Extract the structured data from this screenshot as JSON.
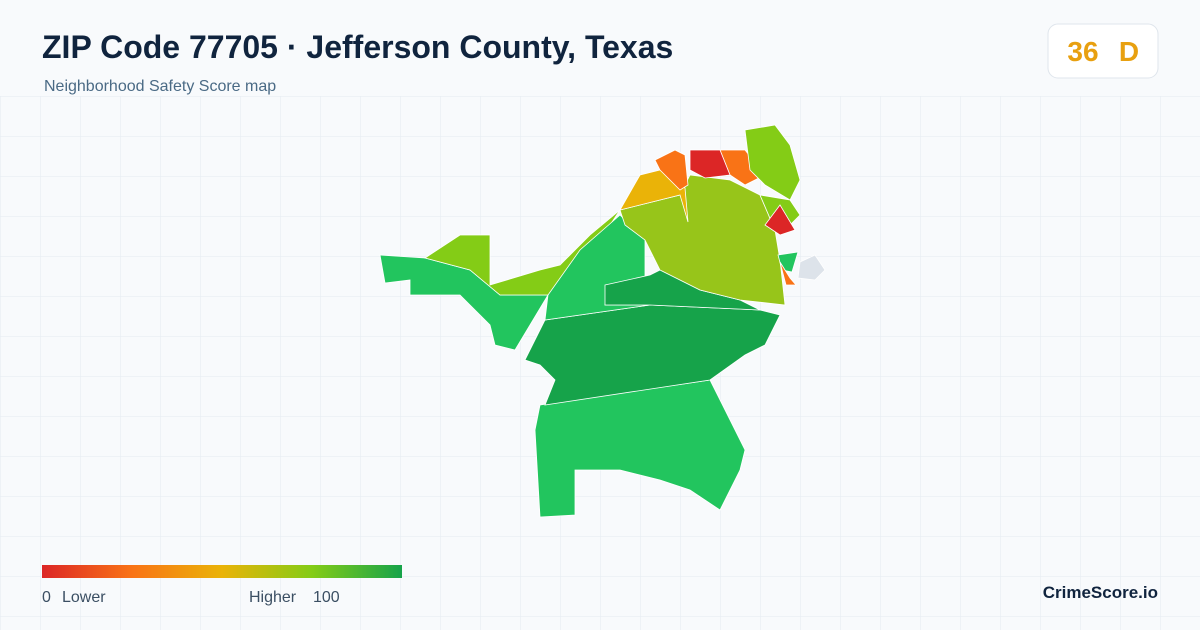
{
  "header": {
    "title": "ZIP Code 77705 · Jefferson County, Texas",
    "subtitle": "Neighborhood Safety Score map",
    "score": "36",
    "grade": "D"
  },
  "legend": {
    "min": "0",
    "min_label": "Lower",
    "max_label": "Higher",
    "max": "100"
  },
  "footer": {
    "brand": "CrimeScore.io"
  }
}
